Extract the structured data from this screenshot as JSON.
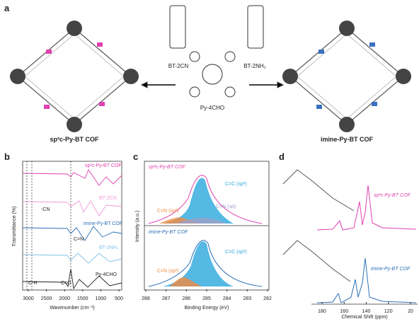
{
  "panels": {
    "a": "a",
    "b": "b",
    "c": "c",
    "d": "d"
  },
  "panel_a": {
    "left_product": "sp²c-Py-BT COF",
    "right_product": "imine-Py-BT COF",
    "center_monomer": "Py-4CHO",
    "left_reagent": "BT-2CN",
    "right_reagent": "BT-2NH₂"
  },
  "panel_b": {
    "y_label": "Transmittance (%)",
    "x_label": "Wavenumber (cm⁻¹)",
    "xticks": [
      3000,
      2500,
      2000,
      1500,
      1000,
      500
    ],
    "traces": [
      "sp²c-Py-BT COF",
      "BT-2CN",
      "imine-Py-BT COF",
      "BT-2NH₂",
      "Py-4CHO"
    ],
    "annotations": {
      "cn": "-CN",
      "cn2": "C=N",
      "co": "C=O",
      "ch": "C-H"
    }
  },
  "panel_c": {
    "y_label": "Intensity (a.u.)",
    "x_label": "Binding Energy (eV)",
    "xticks": [
      288,
      287,
      286,
      285,
      284,
      283,
      282
    ],
    "top_title": "sp²c-Py-BT COF",
    "top_peaks": [
      "C=C (sp²)",
      "C=N (sp²)",
      "C≡N (sp)"
    ],
    "bottom_title": "imine-Py-BT COF",
    "bottom_peaks": [
      "C=C (sp²)",
      "C=N (sp²)"
    ]
  },
  "panel_d": {
    "x_label": "Chemical Shift (ppm)",
    "xticks": [
      180,
      160,
      140,
      120,
      20
    ],
    "top_title": "sp²c-Py-BT COF",
    "bottom_title": "imine-Py-BT COF"
  }
}
